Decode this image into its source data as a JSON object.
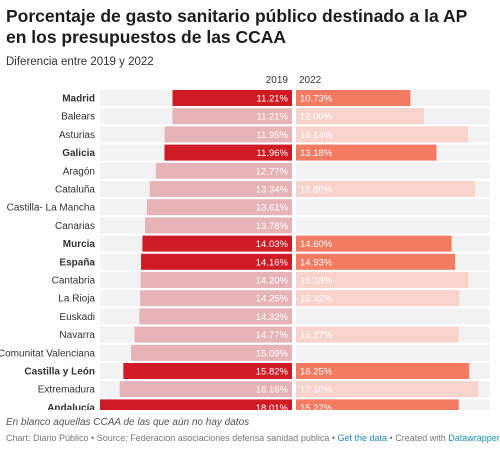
{
  "header": {
    "title": "Porcentaje de gasto sanitario público destinado a la AP en los presupuestos de las CCAA",
    "subtitle": "Diferencia entre 2019 y 2022"
  },
  "footer": {
    "note": "En blanco aquellas CCAA de las que aún no hay datos",
    "credit": "Chart: Diario Público • Source: Federacion asociaciones defensa sanidad publica • ",
    "get_data": "Get the data",
    "created_with": " • Created with ",
    "datawrapper": "Datawrapper"
  },
  "colors": {
    "row_bg": "#f2f2f2",
    "bar_2019_bold": "#cf1b24",
    "bar_2019_light": "#e6b4b6",
    "bar_2022_bold": "#f47b62",
    "bar_2022_light": "#f7d3cb"
  },
  "chart_data": {
    "type": "bar",
    "orientation": "horizontal",
    "scale_max": 18.01,
    "columns": [
      "2019",
      "2022"
    ],
    "rows": [
      {
        "region": "Madrid",
        "highlight": true,
        "v2019": 11.21,
        "v2022": 10.73,
        "l2019": "11.21%",
        "l2022": "10.73%"
      },
      {
        "region": "Balears",
        "highlight": false,
        "v2019": 11.21,
        "v2022": 12.0,
        "l2019": "11.21%",
        "l2022": "12.00%"
      },
      {
        "region": "Asturias",
        "highlight": false,
        "v2019": 11.95,
        "v2022": 16.14,
        "l2019": "11.95%",
        "l2022": "16.14%"
      },
      {
        "region": "Galicia",
        "highlight": true,
        "v2019": 11.96,
        "v2022": 13.18,
        "l2019": "11.96%",
        "l2022": "13.18%"
      },
      {
        "region": "Aragón",
        "highlight": false,
        "v2019": 12.77,
        "v2022": null,
        "l2019": "12.77%",
        "l2022": ""
      },
      {
        "region": "Cataluña",
        "highlight": false,
        "v2019": 13.34,
        "v2022": 16.8,
        "l2019": "13.34%",
        "l2022": "16.80%"
      },
      {
        "region": "Castilla- La Mancha",
        "highlight": false,
        "v2019": 13.61,
        "v2022": null,
        "l2019": "13.61%",
        "l2022": ""
      },
      {
        "region": "Canarias",
        "highlight": false,
        "v2019": 13.78,
        "v2022": null,
        "l2019": "13.78%",
        "l2022": ""
      },
      {
        "region": "Murcia",
        "highlight": true,
        "v2019": 14.03,
        "v2022": 14.6,
        "l2019": "14.03%",
        "l2022": "14.60%"
      },
      {
        "region": "España",
        "highlight": true,
        "v2019": 14.16,
        "v2022": 14.93,
        "l2019": "14.16%",
        "l2022": "14.93%"
      },
      {
        "region": "Cantabria",
        "highlight": false,
        "v2019": 14.2,
        "v2022": 16.18,
        "l2019": "14.20%",
        "l2022": "16.18%"
      },
      {
        "region": "La Rioja",
        "highlight": false,
        "v2019": 14.25,
        "v2022": 15.32,
        "l2019": "14.25%",
        "l2022": "15.32%"
      },
      {
        "region": "Euskadi",
        "highlight": false,
        "v2019": 14.32,
        "v2022": null,
        "l2019": "14.32%",
        "l2022": ""
      },
      {
        "region": "Navarra",
        "highlight": false,
        "v2019": 14.77,
        "v2022": 15.27,
        "l2019": "14.77%",
        "l2022": "15.27%"
      },
      {
        "region": "Comunitat Valenciana",
        "highlight": false,
        "v2019": 15.09,
        "v2022": null,
        "l2019": "15.09%",
        "l2022": ""
      },
      {
        "region": "Castilla y León",
        "highlight": true,
        "v2019": 15.82,
        "v2022": 16.25,
        "l2019": "15.82%",
        "l2022": "16.25%"
      },
      {
        "region": "Extremadura",
        "highlight": false,
        "v2019": 16.16,
        "v2022": 17.1,
        "l2019": "16.16%",
        "l2022": "17.10%"
      },
      {
        "region": "Andalucía",
        "highlight": true,
        "v2019": 18.01,
        "v2022": 15.27,
        "l2019": "18.01%",
        "l2022": "15.27%"
      }
    ]
  }
}
